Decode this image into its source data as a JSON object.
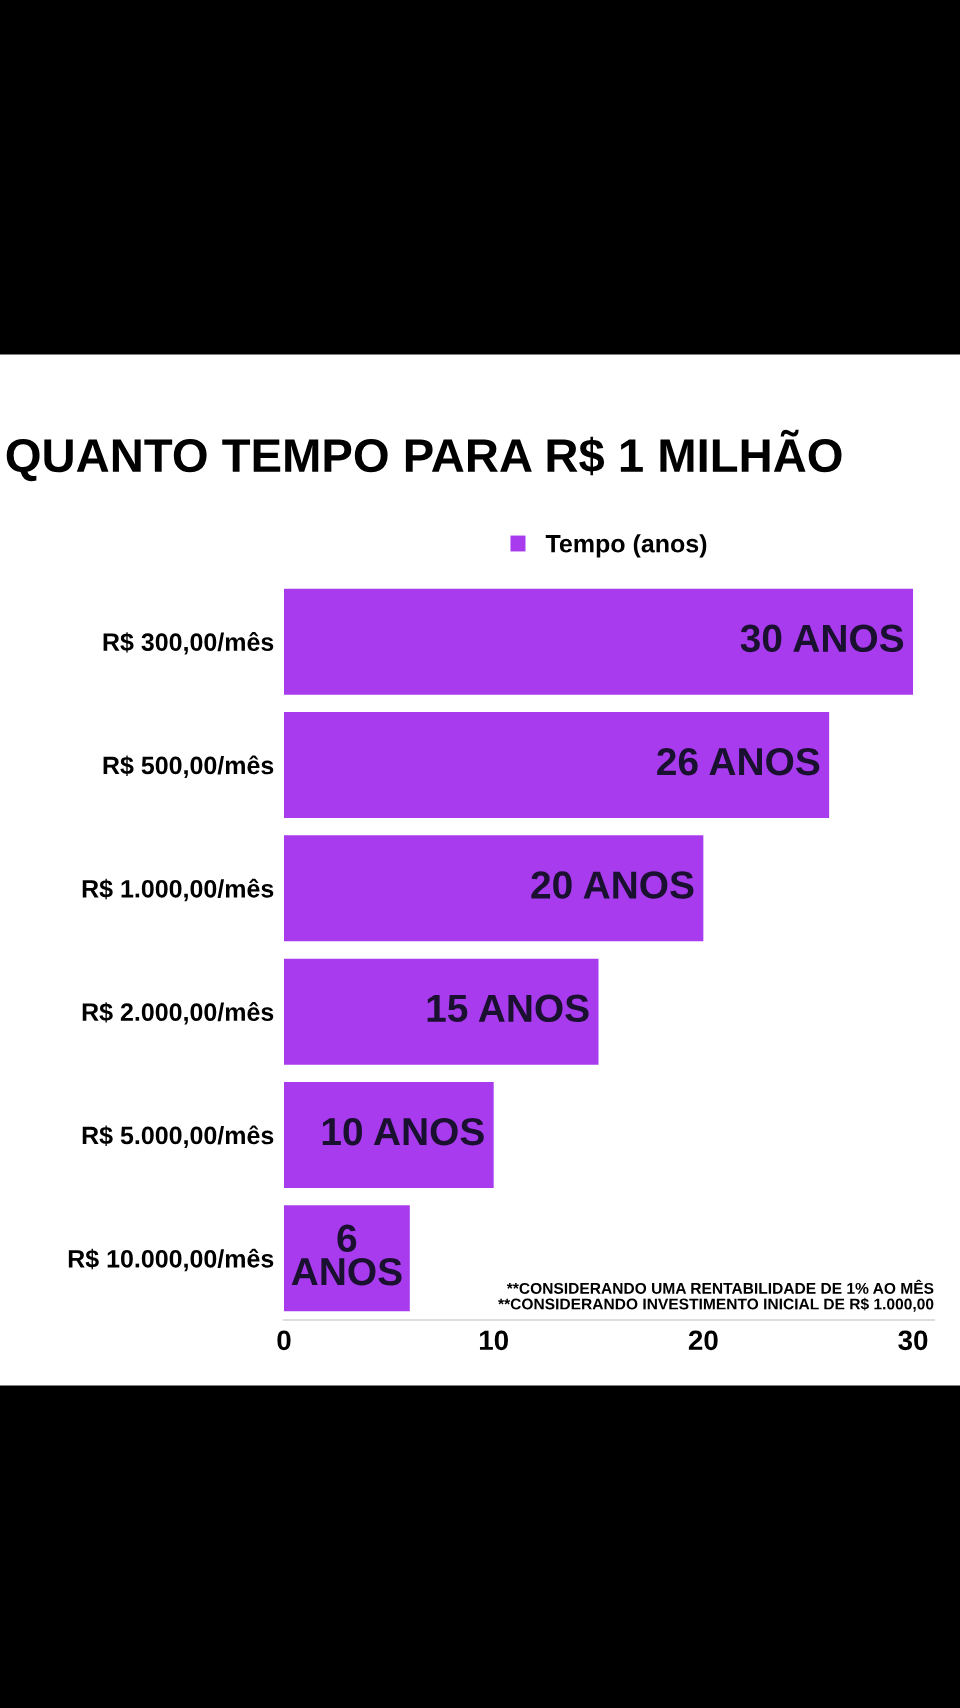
{
  "chart_data": {
    "type": "bar",
    "orientation": "horizontal",
    "title": "QUANTO TEMPO PARA R$ 1 MILHÃO",
    "categories": [
      "R$ 300,00/mês",
      "R$ 500,00/mês",
      "R$ 1.000,00/mês",
      "R$ 2.000,00/mês",
      "R$ 5.000,00/mês",
      "R$ 10.000,00/mês"
    ],
    "series": [
      {
        "name": "Tempo (anos)",
        "color": "#a83bee",
        "values": [
          30,
          26,
          20,
          15,
          10,
          6
        ],
        "value_labels": [
          "30 ANOS",
          "26 ANOS",
          "20 ANOS",
          "15 ANOS",
          "10 ANOS",
          "6\nANOS"
        ]
      }
    ],
    "xlim": [
      0,
      31
    ],
    "xticks": [
      0,
      10,
      20,
      30
    ],
    "grid": false,
    "legend": "top",
    "annotations": [
      "**CONSIDERANDO UMA RENTABILIDADE DE 1% AO MÊS\n**CONSIDERANDO INVESTIMENTO INICIAL DE R$ 1.000,00"
    ]
  }
}
